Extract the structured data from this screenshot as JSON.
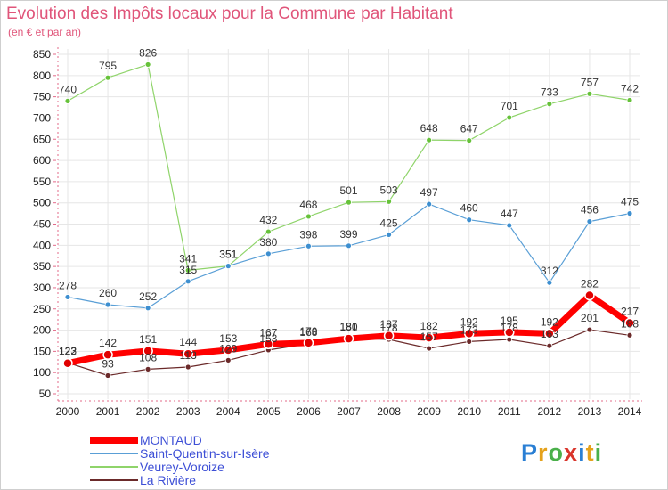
{
  "title": "Evolution des Impôts locaux pour la Commune par Habitant",
  "subtitle": "(en € et par an)",
  "logo": {
    "letters": [
      "P",
      "r",
      "o",
      "x",
      "i",
      "t",
      "i"
    ],
    "colors": [
      "#2a7fd4",
      "#e5a21b",
      "#4bb04b",
      "#d9342b",
      "#2a7fd4",
      "#e5a21b",
      "#4bb04b"
    ]
  },
  "chart_data": {
    "type": "line",
    "x": [
      "2000",
      "2001",
      "2002",
      "2003",
      "2004",
      "2005",
      "2006",
      "2007",
      "2008",
      "2009",
      "2010",
      "2011",
      "2012",
      "2013",
      "2014"
    ],
    "ylim": [
      50,
      850
    ],
    "yticks": [
      50,
      100,
      150,
      200,
      250,
      300,
      350,
      400,
      450,
      500,
      550,
      600,
      650,
      700,
      750,
      800,
      850
    ],
    "grid": true,
    "legend_position": "bottom-left",
    "series": [
      {
        "name": "Veurey-Voroize",
        "color": "#8fd46a",
        "marker": "#66c23a",
        "width": 1.2,
        "values": [
          740,
          795,
          826,
          341,
          351,
          432,
          468,
          501,
          503,
          648,
          647,
          701,
          733,
          757,
          742
        ],
        "labels": [
          "740",
          "795",
          "826",
          "341",
          "351",
          "432",
          "468",
          "501",
          "503",
          "648",
          "647",
          "701",
          "733",
          "757",
          "742"
        ]
      },
      {
        "name": "Saint-Quentin-sur-Isère",
        "color": "#5a9fd6",
        "marker": "#3d8fd0",
        "width": 1.2,
        "values": [
          278,
          260,
          252,
          315,
          351,
          380,
          398,
          399,
          425,
          497,
          460,
          447,
          312,
          456,
          475
        ],
        "labels": [
          "278",
          "260",
          "252",
          "315",
          "351",
          "380",
          "398",
          "399",
          "425",
          "497",
          "460",
          "447",
          "312",
          "456",
          "475"
        ]
      },
      {
        "name": "La Rivière",
        "color": "#6b2a2a",
        "marker": "#6b2a2a",
        "width": 1.2,
        "values": [
          123,
          93,
          108,
          113,
          129,
          153,
          168,
          181,
          178,
          157,
          173,
          178,
          163,
          201,
          188
        ],
        "labels": [
          "123",
          "93",
          "108",
          "113",
          "129",
          "153",
          "168",
          "181",
          "178",
          "157",
          "173",
          "178",
          "163",
          "201",
          "188"
        ]
      },
      {
        "name": "MONTAUD",
        "color": "#ff0000",
        "marker": "#e00000",
        "width": 7,
        "values": [
          122,
          142,
          151,
          144,
          153,
          167,
          170,
          180,
          187,
          182,
          192,
          195,
          192,
          282,
          217
        ],
        "labels": [
          "122",
          "142",
          "151",
          "144",
          "153",
          "167",
          "170",
          "180",
          "187",
          "182",
          "192",
          "195",
          "192",
          "282",
          "217"
        ]
      }
    ],
    "legend": [
      {
        "name": "MONTAUD",
        "color": "#ff0000",
        "width": 7
      },
      {
        "name": "Saint-Quentin-sur-Isère",
        "color": "#5a9fd6",
        "width": 1.5
      },
      {
        "name": "Veurey-Voroize",
        "color": "#8fd46a",
        "width": 1.5
      },
      {
        "name": "La Rivière",
        "color": "#6b2a2a",
        "width": 1.5
      }
    ]
  }
}
